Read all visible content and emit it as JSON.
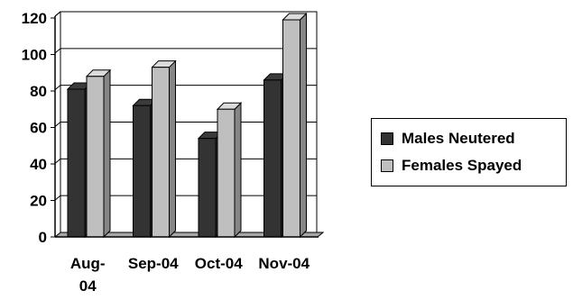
{
  "chart_data": {
    "type": "bar",
    "categories": [
      "Aug-04",
      "Sep-04",
      "Oct-04",
      "Nov-04"
    ],
    "category_labels": [
      [
        "Aug-",
        "04"
      ],
      [
        "Sep-04"
      ],
      [
        "Oct-04"
      ],
      [
        "Nov-04"
      ]
    ],
    "series": [
      {
        "name": "Males Neutered",
        "values": [
          81,
          72,
          54,
          86
        ],
        "color": "#333333"
      },
      {
        "name": "Females Spayed",
        "values": [
          88,
          93,
          70,
          119
        ],
        "color": "#bfbfbf"
      }
    ],
    "ylim": [
      0,
      120
    ],
    "yticks": [
      0,
      20,
      40,
      60,
      80,
      100,
      120
    ],
    "grid": true,
    "legend_position": "right",
    "style": "3d-columns"
  }
}
